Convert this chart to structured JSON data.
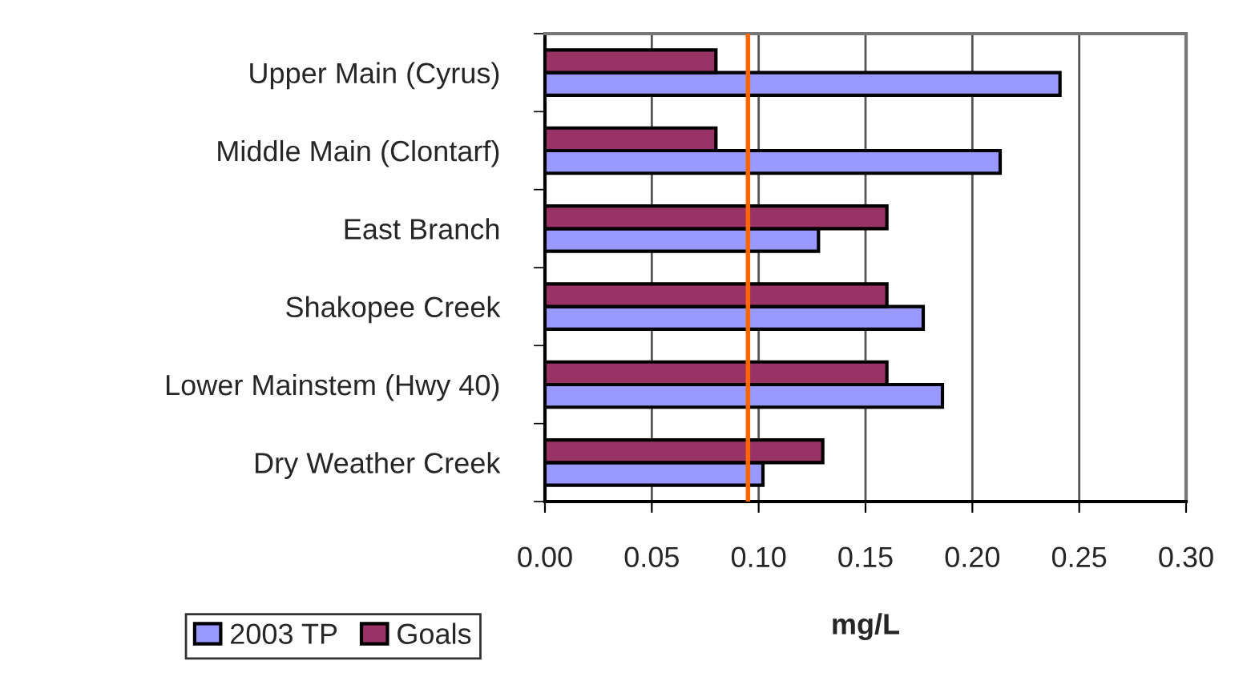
{
  "chart_data": {
    "type": "bar",
    "orientation": "horizontal",
    "xlabel": "mg/L",
    "categories": [
      "Upper Main (Cyrus)",
      "Middle Main (Clontarf)",
      "East Branch",
      "Shakopee Creek",
      "Lower Mainstem (Hwy 40)",
      "Dry Weather Creek"
    ],
    "series": [
      {
        "name": "2003 TP",
        "color": "#9999ff",
        "values": [
          0.241,
          0.213,
          0.128,
          0.177,
          0.186,
          0.102
        ]
      },
      {
        "name": "Goals",
        "color": "#993366",
        "values": [
          0.08,
          0.08,
          0.16,
          0.16,
          0.16,
          0.13
        ]
      }
    ],
    "xlim": [
      0,
      0.3
    ],
    "xticks": [
      {
        "value": 0,
        "label": "0.00"
      },
      {
        "value": 0.05,
        "label": "0.05"
      },
      {
        "value": 0.1,
        "label": "0.10"
      },
      {
        "value": 0.15,
        "label": "0.15"
      },
      {
        "value": 0.2,
        "label": "0.20"
      },
      {
        "value": 0.25,
        "label": "0.25"
      },
      {
        "value": 0.3,
        "label": "0.30"
      }
    ],
    "ref_lines": [
      {
        "axis": "x",
        "value": 0.095,
        "color": "#ff6600"
      }
    ],
    "grid": "x",
    "legend": "bottom left"
  }
}
